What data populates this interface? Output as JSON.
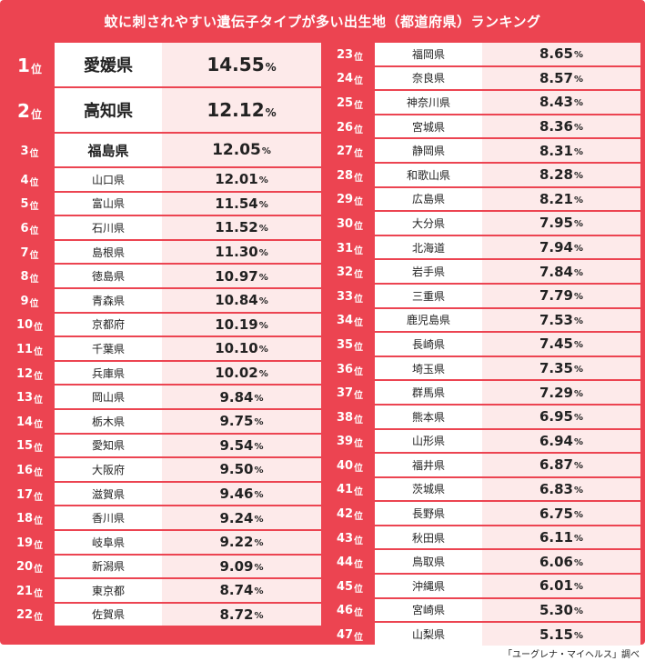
{
  "title": "蚊に刺されやすい遺伝子タイプが多い出生地（都道府県）ランキング",
  "source": "「ユーグレナ・マイヘルス」調べ",
  "colors": {
    "frame": "#ec4451",
    "value_bg": "#fdeaea",
    "cell_bg": "#ffffff"
  },
  "chart_data": {
    "type": "table",
    "rank_suffix": "位",
    "unit": "%",
    "rows": [
      {
        "rank": "1",
        "pref": "愛媛県",
        "value": "14.55"
      },
      {
        "rank": "2",
        "pref": "高知県",
        "value": "12.12"
      },
      {
        "rank": "3",
        "pref": "福島県",
        "value": "12.05"
      },
      {
        "rank": "4",
        "pref": "山口県",
        "value": "12.01"
      },
      {
        "rank": "5",
        "pref": "富山県",
        "value": "11.54"
      },
      {
        "rank": "6",
        "pref": "石川県",
        "value": "11.52"
      },
      {
        "rank": "7",
        "pref": "島根県",
        "value": "11.30"
      },
      {
        "rank": "8",
        "pref": "徳島県",
        "value": "10.97"
      },
      {
        "rank": "9",
        "pref": "青森県",
        "value": "10.84"
      },
      {
        "rank": "10",
        "pref": "京都府",
        "value": "10.19"
      },
      {
        "rank": "11",
        "pref": "千葉県",
        "value": "10.10"
      },
      {
        "rank": "12",
        "pref": "兵庫県",
        "value": "10.02"
      },
      {
        "rank": "13",
        "pref": "岡山県",
        "value": "9.84"
      },
      {
        "rank": "14",
        "pref": "栃木県",
        "value": "9.75"
      },
      {
        "rank": "15",
        "pref": "愛知県",
        "value": "9.54"
      },
      {
        "rank": "16",
        "pref": "大阪府",
        "value": "9.50"
      },
      {
        "rank": "17",
        "pref": "滋賀県",
        "value": "9.46"
      },
      {
        "rank": "18",
        "pref": "香川県",
        "value": "9.24"
      },
      {
        "rank": "19",
        "pref": "岐阜県",
        "value": "9.22"
      },
      {
        "rank": "20",
        "pref": "新潟県",
        "value": "9.09"
      },
      {
        "rank": "21",
        "pref": "東京都",
        "value": "8.74"
      },
      {
        "rank": "22",
        "pref": "佐賀県",
        "value": "8.72"
      },
      {
        "rank": "23",
        "pref": "福岡県",
        "value": "8.65"
      },
      {
        "rank": "24",
        "pref": "奈良県",
        "value": "8.57"
      },
      {
        "rank": "25",
        "pref": "神奈川県",
        "value": "8.43"
      },
      {
        "rank": "26",
        "pref": "宮城県",
        "value": "8.36"
      },
      {
        "rank": "27",
        "pref": "静岡県",
        "value": "8.31"
      },
      {
        "rank": "28",
        "pref": "和歌山県",
        "value": "8.28"
      },
      {
        "rank": "29",
        "pref": "広島県",
        "value": "8.21"
      },
      {
        "rank": "30",
        "pref": "大分県",
        "value": "7.95"
      },
      {
        "rank": "31",
        "pref": "北海道",
        "value": "7.94"
      },
      {
        "rank": "32",
        "pref": "岩手県",
        "value": "7.84"
      },
      {
        "rank": "33",
        "pref": "三重県",
        "value": "7.79"
      },
      {
        "rank": "34",
        "pref": "鹿児島県",
        "value": "7.53"
      },
      {
        "rank": "35",
        "pref": "長崎県",
        "value": "7.45"
      },
      {
        "rank": "36",
        "pref": "埼玉県",
        "value": "7.35"
      },
      {
        "rank": "37",
        "pref": "群馬県",
        "value": "7.29"
      },
      {
        "rank": "38",
        "pref": "熊本県",
        "value": "6.95"
      },
      {
        "rank": "39",
        "pref": "山形県",
        "value": "6.94"
      },
      {
        "rank": "40",
        "pref": "福井県",
        "value": "6.87"
      },
      {
        "rank": "41",
        "pref": "茨城県",
        "value": "6.83"
      },
      {
        "rank": "42",
        "pref": "長野県",
        "value": "6.75"
      },
      {
        "rank": "43",
        "pref": "秋田県",
        "value": "6.11"
      },
      {
        "rank": "44",
        "pref": "鳥取県",
        "value": "6.06"
      },
      {
        "rank": "45",
        "pref": "沖縄県",
        "value": "6.01"
      },
      {
        "rank": "46",
        "pref": "宮崎県",
        "value": "5.30"
      },
      {
        "rank": "47",
        "pref": "山梨県",
        "value": "5.15"
      }
    ]
  }
}
